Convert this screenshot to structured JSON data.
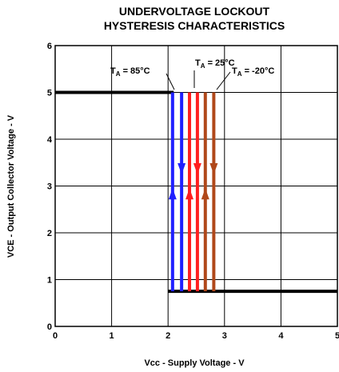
{
  "chart_data": {
    "type": "line",
    "title_line1": "UNDERVOLTAGE LOCKOUT",
    "title_line2": "HYSTERESIS CHARACTERISTICS",
    "xlabel": "Vcc - Supply Voltage - V",
    "ylabel": "VCE - Output Collector Voltage - V",
    "xlim": [
      0,
      5
    ],
    "ylim": [
      0,
      6
    ],
    "xticks": [
      "0",
      "1",
      "2",
      "3",
      "4",
      "5"
    ],
    "yticks": [
      "0",
      "1",
      "2",
      "3",
      "4",
      "5",
      "6"
    ],
    "grid": true,
    "high_level": 5.0,
    "low_level": 0.75,
    "high_line_x": [
      0,
      2.1
    ],
    "low_line_x": [
      2.0,
      5.0
    ],
    "series": [
      {
        "label_main": "T",
        "label_sub": "A",
        "label_rest": " = 85°C",
        "color": "#1f1fff",
        "up_x": 2.08,
        "down_x": 2.24
      },
      {
        "label_main": "T",
        "label_sub": "A",
        "label_rest": " = 25°C",
        "color": "#ff1f1f",
        "up_x": 2.38,
        "down_x": 2.52
      },
      {
        "label_main": "T",
        "label_sub": "A",
        "label_rest": " = -20°C",
        "color": "#b0481a",
        "up_x": 2.66,
        "down_x": 2.81
      }
    ]
  }
}
